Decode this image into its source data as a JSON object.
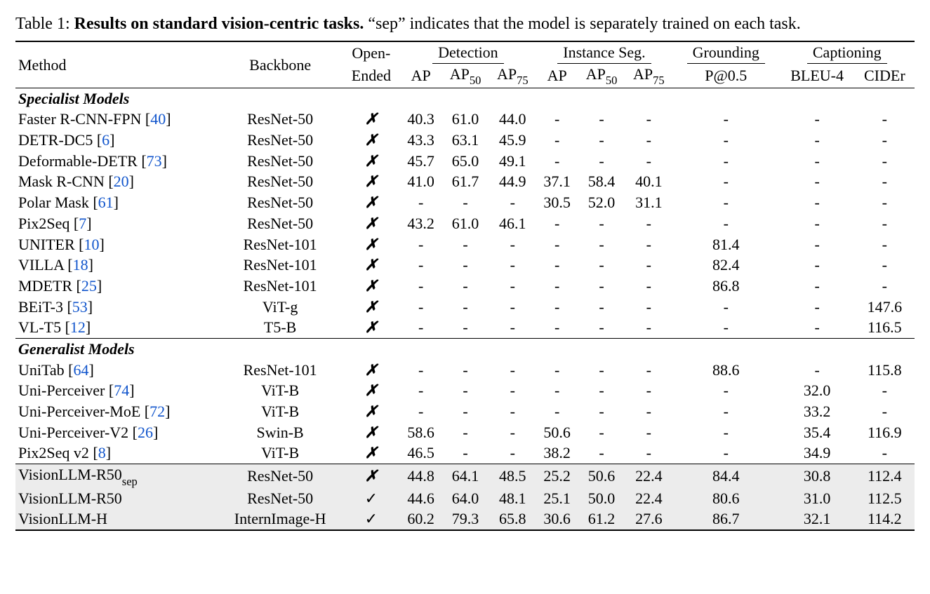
{
  "caption": {
    "prefix": "Table 1: ",
    "bold": "Results on standard vision-centric tasks.",
    "rest": " “sep” indicates that the model is separately trained on each task."
  },
  "headers": {
    "method": "Method",
    "backbone": "Backbone",
    "open_ended_top": "Open-",
    "open_ended_bot": "Ended",
    "detection": "Detection",
    "instance_seg": "Instance Seg.",
    "grounding": "Grounding",
    "captioning": "Captioning",
    "ap": "AP",
    "ap50": "AP",
    "ap50_sub": "50",
    "ap75": "AP",
    "ap75_sub": "75",
    "p05": "P@0.5",
    "bleu4": "BLEU-4",
    "cider": "CIDEr"
  },
  "sections": {
    "spec": "Specialist Models",
    "gen": "Generalist Models"
  },
  "marks": {
    "no": "✗",
    "yes": "✓",
    "dash": "-"
  },
  "rows_spec": [
    {
      "method": "Faster R-CNN-FPN",
      "cite": "40",
      "backbone": "ResNet-50",
      "oe": "no",
      "d": [
        "40.3",
        "61.0",
        "44.0"
      ],
      "s": [
        "-",
        "-",
        "-"
      ],
      "g": "-",
      "c": [
        "-",
        "-"
      ]
    },
    {
      "method": "DETR-DC5",
      "cite": "6",
      "backbone": "ResNet-50",
      "oe": "no",
      "d": [
        "43.3",
        "63.1",
        "45.9"
      ],
      "s": [
        "-",
        "-",
        "-"
      ],
      "g": "-",
      "c": [
        "-",
        "-"
      ]
    },
    {
      "method": "Deformable-DETR",
      "cite": "73",
      "backbone": "ResNet-50",
      "oe": "no",
      "d": [
        "45.7",
        "65.0",
        "49.1"
      ],
      "s": [
        "-",
        "-",
        "-"
      ],
      "g": "-",
      "c": [
        "-",
        "-"
      ]
    },
    {
      "method": "Mask R-CNN",
      "cite": "20",
      "backbone": "ResNet-50",
      "oe": "no",
      "d": [
        "41.0",
        "61.7",
        "44.9"
      ],
      "s": [
        "37.1",
        "58.4",
        "40.1"
      ],
      "g": "-",
      "c": [
        "-",
        "-"
      ]
    },
    {
      "method": "Polar Mask",
      "cite": "61",
      "backbone": "ResNet-50",
      "oe": "no",
      "d": [
        "-",
        "-",
        "-"
      ],
      "s": [
        "30.5",
        "52.0",
        "31.1"
      ],
      "g": "-",
      "c": [
        "-",
        "-"
      ]
    },
    {
      "method": "Pix2Seq",
      "cite": "7",
      "backbone": "ResNet-50",
      "oe": "no",
      "d": [
        "43.2",
        "61.0",
        "46.1"
      ],
      "s": [
        "-",
        "-",
        "-"
      ],
      "g": "-",
      "c": [
        "-",
        "-"
      ]
    },
    {
      "method": "UNITER",
      "cite": "10",
      "backbone": "ResNet-101",
      "oe": "no",
      "d": [
        "-",
        "-",
        "-"
      ],
      "s": [
        "-",
        "-",
        "-"
      ],
      "g": "81.4",
      "c": [
        "-",
        "-"
      ]
    },
    {
      "method": "VILLA",
      "cite": "18",
      "backbone": "ResNet-101",
      "oe": "no",
      "d": [
        "-",
        "-",
        "-"
      ],
      "s": [
        "-",
        "-",
        "-"
      ],
      "g": "82.4",
      "c": [
        "-",
        "-"
      ]
    },
    {
      "method": "MDETR",
      "cite": "25",
      "backbone": "ResNet-101",
      "oe": "no",
      "d": [
        "-",
        "-",
        "-"
      ],
      "s": [
        "-",
        "-",
        "-"
      ],
      "g": "86.8",
      "c": [
        "-",
        "-"
      ]
    },
    {
      "method": "BEiT-3",
      "cite": "53",
      "backbone": "ViT-g",
      "oe": "no",
      "d": [
        "-",
        "-",
        "-"
      ],
      "s": [
        "-",
        "-",
        "-"
      ],
      "g": "-",
      "c": [
        "-",
        "147.6"
      ]
    },
    {
      "method": "VL-T5",
      "cite": "12",
      "backbone": "T5-B",
      "oe": "no",
      "d": [
        "-",
        "-",
        "-"
      ],
      "s": [
        "-",
        "-",
        "-"
      ],
      "g": "-",
      "c": [
        "-",
        "116.5"
      ]
    }
  ],
  "rows_gen": [
    {
      "method": "UniTab",
      "cite": "64",
      "backbone": "ResNet-101",
      "oe": "no",
      "d": [
        "-",
        "-",
        "-"
      ],
      "s": [
        "-",
        "-",
        "-"
      ],
      "g": "88.6",
      "c": [
        "-",
        "115.8"
      ]
    },
    {
      "method": "Uni-Perceiver",
      "cite": "74",
      "backbone": "ViT-B",
      "oe": "no",
      "d": [
        "-",
        "-",
        "-"
      ],
      "s": [
        "-",
        "-",
        "-"
      ],
      "g": "-",
      "c": [
        "32.0",
        "-"
      ]
    },
    {
      "method": "Uni-Perceiver-MoE",
      "cite": "72",
      "backbone": "ViT-B",
      "oe": "no",
      "d": [
        "-",
        "-",
        "-"
      ],
      "s": [
        "-",
        "-",
        "-"
      ],
      "g": "-",
      "c": [
        "33.2",
        "-"
      ]
    },
    {
      "method": "Uni-Perceiver-V2",
      "cite": "26",
      "backbone": "Swin-B",
      "oe": "no",
      "d": [
        "58.6",
        "-",
        "-"
      ],
      "s": [
        "50.6",
        "-",
        "-"
      ],
      "g": "-",
      "c": [
        "35.4",
        "116.9"
      ]
    },
    {
      "method": "Pix2Seq v2",
      "cite": "8",
      "backbone": "ViT-B",
      "oe": "no",
      "d": [
        "46.5",
        "-",
        "-"
      ],
      "s": [
        "38.2",
        "-",
        "-"
      ],
      "g": "-",
      "c": [
        "34.9",
        "-"
      ]
    }
  ],
  "rows_hl": [
    {
      "method": "VisionLLM-R50",
      "sub": "sep",
      "cite": "",
      "backbone": "ResNet-50",
      "oe": "no",
      "d": [
        "44.8",
        "64.1",
        "48.5"
      ],
      "s": [
        "25.2",
        "50.6",
        "22.4"
      ],
      "g": "84.4",
      "c": [
        "30.8",
        "112.4"
      ]
    },
    {
      "method": "VisionLLM-R50",
      "sub": "",
      "cite": "",
      "backbone": "ResNet-50",
      "oe": "yes",
      "d": [
        "44.6",
        "64.0",
        "48.1"
      ],
      "s": [
        "25.1",
        "50.0",
        "22.4"
      ],
      "g": "80.6",
      "c": [
        "31.0",
        "112.5"
      ]
    },
    {
      "method": "VisionLLM-H",
      "sub": "",
      "cite": "",
      "backbone": "InternImage-H",
      "oe": "yes",
      "d": [
        "60.2",
        "79.3",
        "65.8"
      ],
      "s": [
        "30.6",
        "61.2",
        "27.6"
      ],
      "g": "86.7",
      "c": [
        "32.1",
        "114.2"
      ]
    }
  ],
  "watermark": "",
  "style": {
    "cite_color": "#1155cc",
    "highlight_bg": "#ececec",
    "font_family": "Times New Roman",
    "font_size_pt": 22
  }
}
